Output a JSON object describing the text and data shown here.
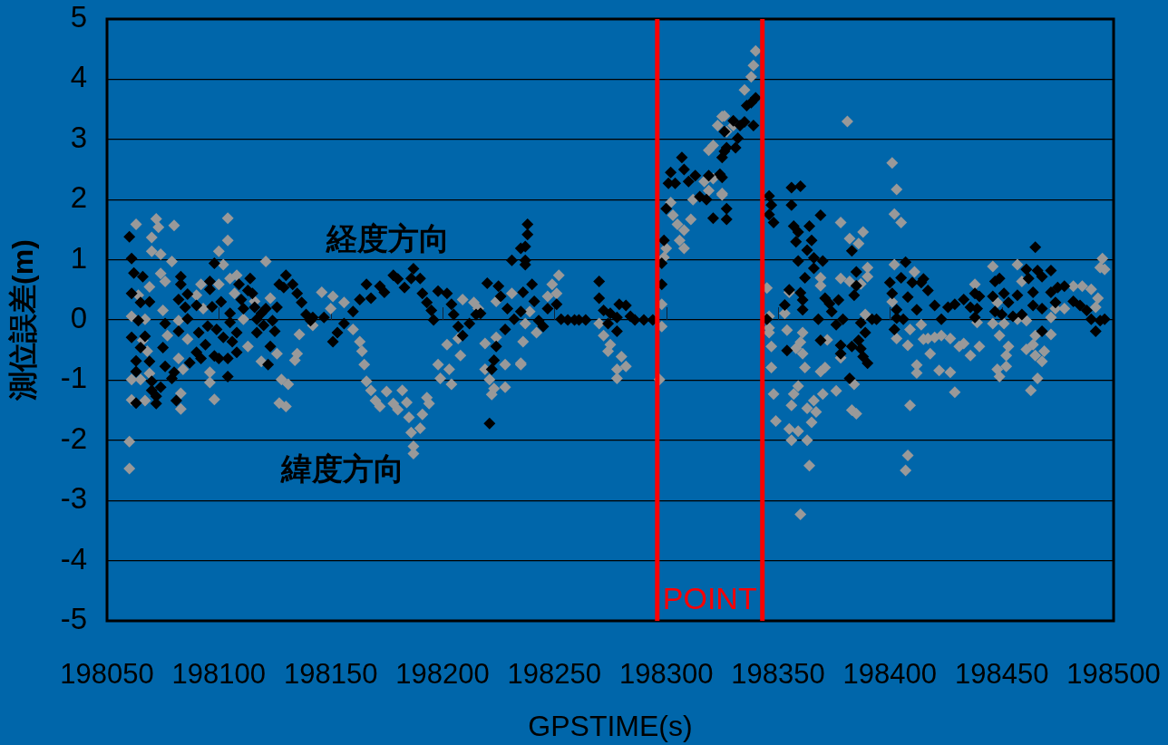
{
  "chart_data": {
    "type": "scatter",
    "xlabel": "GPSTIME(s)",
    "ylabel": "測位誤差(m)",
    "xlim": [
      198050,
      198500
    ],
    "xticks": [
      198050,
      198100,
      198150,
      198200,
      198250,
      198300,
      198350,
      198400,
      198450,
      198500
    ],
    "ylim": [
      -5,
      5
    ],
    "yticks": [
      -5,
      -4,
      -3,
      -2,
      -1,
      0,
      1,
      2,
      3,
      4,
      5
    ],
    "grid": "y",
    "marker": "diamond",
    "ref_lines": [
      {
        "axis": "x",
        "value": 198296,
        "label": "POINT",
        "color": "#ff0000"
      },
      {
        "axis": "x",
        "value": 198343,
        "color": "#ff0000"
      }
    ],
    "series": [
      {
        "name": "経度方向",
        "color": "#000000",
        "x": [
          198060,
          198061,
          198062,
          198061,
          198066,
          198065,
          198069,
          198064,
          198061,
          198067,
          198065,
          198063,
          198063,
          198063,
          198069,
          198070,
          198070,
          198072,
          198072,
          198074,
          198075,
          198076,
          198076,
          198079,
          198080,
          198081,
          198082,
          198083,
          198083,
          198085,
          198086,
          198086,
          198082,
          198087,
          198090,
          198091,
          198090,
          198092,
          198094,
          198095,
          198098,
          198096,
          198096,
          198097,
          198101,
          198099,
          198098,
          198100,
          198104,
          198104,
          198102,
          198105,
          198105,
          198106,
          198108,
          198108,
          198109,
          198110,
          198111,
          198113,
          198114,
          198115,
          198116,
          198117,
          198117,
          198119,
          198120,
          198121,
          198123,
          198122,
          198124,
          198125,
          198126,
          198127,
          198129,
          198130,
          198133,
          198135,
          198137,
          198139,
          198142,
          198141,
          198147,
          198151,
          198153,
          198156,
          198160,
          198163,
          198166,
          198168,
          198172,
          198174,
          198178,
          198180,
          198183,
          198186,
          198187,
          198190,
          198191,
          198193,
          198195,
          198196,
          198198,
          198202,
          198204,
          198205,
          198207,
          198209,
          198212,
          198215,
          198217,
          198220,
          198225,
          198226,
          198229,
          198232,
          198228,
          198224,
          198223,
          198222,
          198221,
          198231,
          198235,
          198238,
          198238,
          198237,
          198237,
          198237,
          198240,
          198236,
          198241,
          198235,
          198243,
          198245,
          198247,
          198251,
          198253,
          198256,
          198259,
          198261,
          198264,
          198270,
          198270,
          198272,
          198274,
          198275,
          198278,
          198279,
          198278,
          198282,
          198284,
          198286,
          198290,
          198294,
          198298,
          198298,
          198299,
          198300,
          198301,
          198302,
          198304,
          198307,
          198308,
          198310,
          198313,
          198315,
          198318,
          198319,
          198321,
          198324,
          198325,
          198326,
          198326,
          198327,
          198327,
          198325,
          198327,
          198330,
          198331,
          198332,
          198333,
          198335,
          198336,
          198338,
          198339,
          198340,
          198346,
          198347,
          198346,
          198348,
          198345,
          198356,
          198360,
          198356,
          198357,
          198359,
          198358,
          198364,
          198365,
          198363,
          198366,
          198369,
          198370,
          198359,
          198366,
          198362,
          198355,
          198353,
          198360,
          198361,
          198361,
          198354,
          198369,
          198368,
          198371,
          198373,
          198374,
          198376,
          198377,
          198379,
          198378,
          198378,
          198382,
          198383,
          198383,
          198384,
          198385,
          198385,
          198387,
          198386,
          198387,
          198388,
          198390,
          198389,
          198392,
          198394,
          198402,
          198401,
          198400,
          198403,
          198403,
          198406,
          198405,
          198407,
          198408,
          198410,
          198412,
          198414,
          198415,
          198417,
          198420,
          198423,
          198426,
          198429,
          198433,
          198436,
          198438,
          198440,
          198439,
          198438,
          198446,
          198447,
          198449,
          198447,
          198450,
          198451,
          198453,
          198455,
          198457,
          198459,
          198461,
          198462,
          198465,
          198466,
          198468,
          198464,
          198464,
          198468,
          198468,
          198472,
          198472,
          198474,
          198475,
          198478,
          198482,
          198485,
          198488,
          198490,
          198492,
          198494,
          198496
        ],
        "values": [
          1.38,
          1.02,
          0.78,
          0.44,
          0.72,
          0.29,
          0.3,
          -0.01,
          -0.29,
          -0.27,
          -0.46,
          -0.68,
          -0.86,
          -1.38,
          -0.69,
          -1.02,
          -1.17,
          -1.27,
          -1.39,
          -1.12,
          -0.46,
          -0.77,
          -0.06,
          -0.97,
          -0.87,
          -1.34,
          0.34,
          0.72,
          0.59,
          0.21,
          0.02,
          0.43,
          -0.19,
          -0.71,
          0.24,
          -0.21,
          -0.54,
          -0.64,
          -0.41,
          -0.1,
          0.94,
          0.64,
          0.51,
          0.22,
          0.3,
          -0.16,
          -0.6,
          -0.64,
          -0.64,
          -0.94,
          -0.29,
          0.11,
          -0.04,
          -0.36,
          -0.54,
          -0.21,
          0.59,
          0.34,
          0.19,
          0.49,
          0.69,
          0.44,
          0.21,
          0.01,
          -0.21,
          0.11,
          -0.09,
          0.19,
          -0.44,
          -0.74,
          -0.01,
          -0.19,
          0.21,
          0.59,
          0.54,
          0.74,
          0.59,
          0.44,
          0.29,
          0.09,
          0.04,
          -0.01,
          0.04,
          -0.36,
          -0.21,
          -0.06,
          0.14,
          0.34,
          0.59,
          0.36,
          0.56,
          0.46,
          0.74,
          0.68,
          0.54,
          0.69,
          0.85,
          0.69,
          0.44,
          0.29,
          0.16,
          0,
          0.48,
          0.44,
          0.26,
          0.09,
          -0.11,
          -0.26,
          -0.06,
          0.09,
          0.11,
          0.61,
          0.56,
          0.39,
          0.19,
          0.01,
          -0.16,
          -0.44,
          -0.67,
          -0.82,
          -1.72,
          0.99,
          1.19,
          1.59,
          1.42,
          1.22,
          0.99,
          0.92,
          0.59,
          0.46,
          0.31,
          0.14,
          -0.01,
          -0.11,
          0.19,
          0.26,
          0.01,
          0,
          0,
          0,
          0,
          0.64,
          0.36,
          0.16,
          -0.06,
          0.11,
          -0.19,
          0.26,
          0.04,
          0.24,
          0.06,
          0,
          0,
          0,
          0.59,
          0.94,
          1.32,
          1.85,
          2.27,
          2.45,
          2.27,
          2.7,
          2.5,
          2.3,
          2.4,
          2.05,
          2,
          2.4,
          1.69,
          2.42,
          2.7,
          3.13,
          2.8,
          1.85,
          2.86,
          2.37,
          1.67,
          3.31,
          2.86,
          3.02,
          3.23,
          3.29,
          3.56,
          3.61,
          3.23,
          3.69,
          2.06,
          1.91,
          1.75,
          1.62,
          0.01,
          2.2,
          2.22,
          1.91,
          1.56,
          1.46,
          1.3,
          1.56,
          1.32,
          1.16,
          1.03,
          1.74,
          0.98,
          0.98,
          0.86,
          0.7,
          0.5,
          0.25,
          0.45,
          0.33,
          0.17,
          -0.51,
          -0.34,
          0.01,
          0.36,
          0.27,
          0.14,
          -0.08,
          0.33,
          0.01,
          -0.42,
          -0.56,
          -0.97,
          -0.44,
          1.15,
          0.41,
          0.57,
          0.8,
          -0.05,
          -0.34,
          -0.48,
          -0.61,
          -0.72,
          -0.21,
          0.01,
          0.01,
          -0.16,
          0.44,
          0.62,
          0.17,
          0.03,
          0.01,
          0.7,
          0.96,
          0.38,
          0.62,
          0.17,
          0.62,
          0.68,
          0.49,
          0.24,
          0.01,
          0.21,
          0.26,
          0.34,
          0.21,
          0.44,
          0.39,
          0.19,
          0.04,
          0.39,
          0.64,
          0.69,
          0.14,
          0.09,
          0.44,
          0.29,
          0.06,
          0.41,
          0.09,
          0.84,
          0.69,
          1.21,
          0.82,
          0.72,
          0.24,
          0.46,
          0.19,
          -0.19,
          0.82,
          0.46,
          0.29,
          0.54,
          0.56,
          0.31,
          0.24,
          0.16,
          0.01,
          -0.19,
          -0.01,
          0.01
        ]
      },
      {
        "name": "緯度方向",
        "color": "#999999",
        "x": [
          198063,
          198070,
          198072,
          198073,
          198080,
          198070,
          198074,
          198079,
          198074,
          198076,
          198069,
          198064,
          198075,
          198061,
          198067,
          198077,
          198082,
          198086,
          198066,
          198068,
          198061,
          198065,
          198069,
          198067,
          198061,
          198082,
          198084,
          198083,
          198083,
          198060,
          198060,
          198104,
          198104,
          198100,
          198102,
          198100,
          198105,
          198092,
          198090,
          198093,
          198096,
          198096,
          198098,
          198108,
          198107,
          198111,
          198113,
          198116,
          198121,
          198119,
          198123,
          198126,
          198128,
          198131,
          198127,
          198130,
          198134,
          198135,
          198136,
          198142,
          198146,
          198151,
          198156,
          198150,
          198160,
          198163,
          198164,
          198165,
          198166,
          198168,
          198170,
          198172,
          198175,
          198178,
          198180,
          198182,
          198184,
          198185,
          198186,
          198187,
          198187,
          198190,
          198191,
          198193,
          198194,
          198198,
          198199,
          198202,
          198203,
          198204,
          198208,
          198207,
          198209,
          198214,
          198216,
          198219,
          198224,
          198219,
          198221,
          198223,
          198222,
          198228,
          198228,
          198231,
          198224,
          198235,
          198236,
          198235,
          198237,
          198239,
          198242,
          198247,
          198249,
          198252,
          198251,
          198270,
          198272,
          198274,
          198275,
          198278,
          198278,
          198280,
          198282,
          198297,
          198298,
          198298,
          198299,
          198300,
          198302,
          198303,
          198305,
          198306,
          198308,
          198308,
          198311,
          198312,
          198317,
          198319,
          198321,
          198319,
          198321,
          198323,
          198325,
          198325,
          198340,
          198339,
          198338,
          198335,
          198330,
          198326,
          198327,
          198325,
          198381,
          198401,
          198403,
          198402,
          198405,
          198378,
          198388,
          198386,
          198382,
          198345,
          198355,
          198353,
          198346,
          198346,
          198346,
          198347,
          198347,
          198348,
          198349,
          198354,
          198358,
          198360,
          198361,
          198361,
          198362,
          198359,
          198357,
          198356,
          198355,
          198359,
          198356,
          198363,
          198366,
          198367,
          198365,
          198363,
          198364,
          198360,
          198369,
          198369,
          198371,
          198369,
          198370,
          198372,
          198376,
          198378,
          198378,
          198382,
          198390,
          198390,
          198387,
          198389,
          198384,
          198383,
          198385,
          198402,
          198401,
          198403,
          198408,
          198409,
          198412,
          198412,
          198409,
          198408,
          198407,
          198411,
          198414,
          198415,
          198417,
          198420,
          198423,
          198427,
          198418,
          198422,
          198427,
          198429,
          198431,
          198433,
          198436,
          198440,
          198438,
          198439,
          198446,
          198448,
          198446,
          198449,
          198451,
          198453,
          198452,
          198452,
          198448,
          198449,
          198457,
          198459,
          198457,
          198461,
          198461,
          198464,
          198465,
          198468,
          198469,
          198463,
          198466,
          198465,
          198472,
          198472,
          198474,
          198478,
          198482,
          198486,
          198490,
          198493,
          198492,
          198495,
          198494,
          198496
        ],
        "values": [
          1.59,
          1.37,
          1.68,
          1.54,
          1.57,
          1.14,
          1.09,
          0.97,
          0.77,
          0.64,
          0.55,
          0.41,
          0.16,
          0.06,
          0.01,
          -0.26,
          -0.01,
          -0.32,
          -0.34,
          -0.52,
          -0.99,
          -0.99,
          -0.89,
          -1.34,
          -1.33,
          -0.64,
          -0.82,
          -1.22,
          -1.48,
          -2.02,
          -2.47,
          1.69,
          1.32,
          1.14,
          0.92,
          0.59,
          0.69,
          0.59,
          0.41,
          0.19,
          -0.87,
          -1.04,
          -1.32,
          0.74,
          0.44,
          0.01,
          -0.44,
          0.31,
          0.97,
          -0.69,
          0.36,
          -0.56,
          -0.99,
          -1.07,
          -1.38,
          -1.44,
          -0.67,
          -0.56,
          -0.24,
          -0.09,
          0.46,
          0.39,
          0.29,
          0.19,
          -0.16,
          -0.36,
          -0.52,
          -0.74,
          -1.02,
          -1.17,
          -1.34,
          -1.44,
          -1.19,
          -1.39,
          -1.49,
          -1.17,
          -1.37,
          -1.62,
          -1.87,
          -2.1,
          -2.22,
          -1.8,
          -1.57,
          -1.29,
          -1.39,
          -0.74,
          -0.97,
          -0.41,
          -0.82,
          -1.07,
          -0.59,
          -0.31,
          0.34,
          0.29,
          0.19,
          -0.39,
          -0.29,
          -0.82,
          -0.99,
          -1.14,
          -1.24,
          -0.74,
          -1.12,
          0.44,
          0.31,
          -0.72,
          -0.36,
          -0.74,
          -0.06,
          0.14,
          -0.21,
          0.39,
          0.59,
          0.74,
          0.44,
          -0.06,
          -0.26,
          -0.52,
          -0.41,
          -0.82,
          -0.97,
          -0.61,
          -0.77,
          -0.99,
          -0.11,
          0.26,
          1.04,
          1.19,
          1.95,
          1.74,
          1.59,
          1.32,
          1.49,
          1.19,
          1.67,
          2,
          2.3,
          2.15,
          2.35,
          2.82,
          2.9,
          3.23,
          3.38,
          2.1,
          4.47,
          4.23,
          4.04,
          3.82,
          3.23,
          3.39,
          3.13,
          2.08,
          3.3,
          2.61,
          2.17,
          1.76,
          1.62,
          1.62,
          1.46,
          1.27,
          1.35,
          0.53,
          0.46,
          0.11,
          0.06,
          -0.13,
          -0.21,
          -0.44,
          -0.79,
          -1.23,
          -1.68,
          -0.17,
          -0.47,
          -0.37,
          -0.21,
          -0.56,
          -0.79,
          -1.1,
          -1.23,
          -1.42,
          -1.81,
          -1.85,
          -2,
          -1.47,
          -1.34,
          -1.53,
          -1.7,
          -2,
          -2.42,
          -3.23,
          0.7,
          0.57,
          -0.79,
          -0.86,
          -1.23,
          -0.33,
          -1.18,
          -0.63,
          0.69,
          0.64,
          0.87,
          0.72,
          0.6,
          0.09,
          -1.07,
          -1.5,
          -1.56,
          0.92,
          0.3,
          -0.31,
          -0.42,
          -0.16,
          -0.75,
          -0.88,
          -1.42,
          -2.25,
          -2.5,
          0.8,
          -0.08,
          -0.32,
          -0.31,
          -0.29,
          -0.26,
          -0.31,
          -0.56,
          -0.84,
          -0.87,
          -1.2,
          -0.44,
          -0.39,
          -0.59,
          -0.44,
          0.59,
          -0.04,
          0.89,
          0.29,
          -0.06,
          -0.26,
          -0.06,
          -0.44,
          -0.59,
          -0.77,
          -0.82,
          -0.94,
          0.92,
          0.64,
          0.01,
          -0.01,
          -0.49,
          -0.41,
          -0.59,
          -0.69,
          -0.52,
          -1.17,
          -0.97,
          -0.26,
          0.04,
          -0.24,
          0.19,
          0.19,
          0.56,
          0.56,
          0.51,
          0.36,
          0.21,
          1.02,
          0.87,
          0.84
        ]
      }
    ]
  }
}
